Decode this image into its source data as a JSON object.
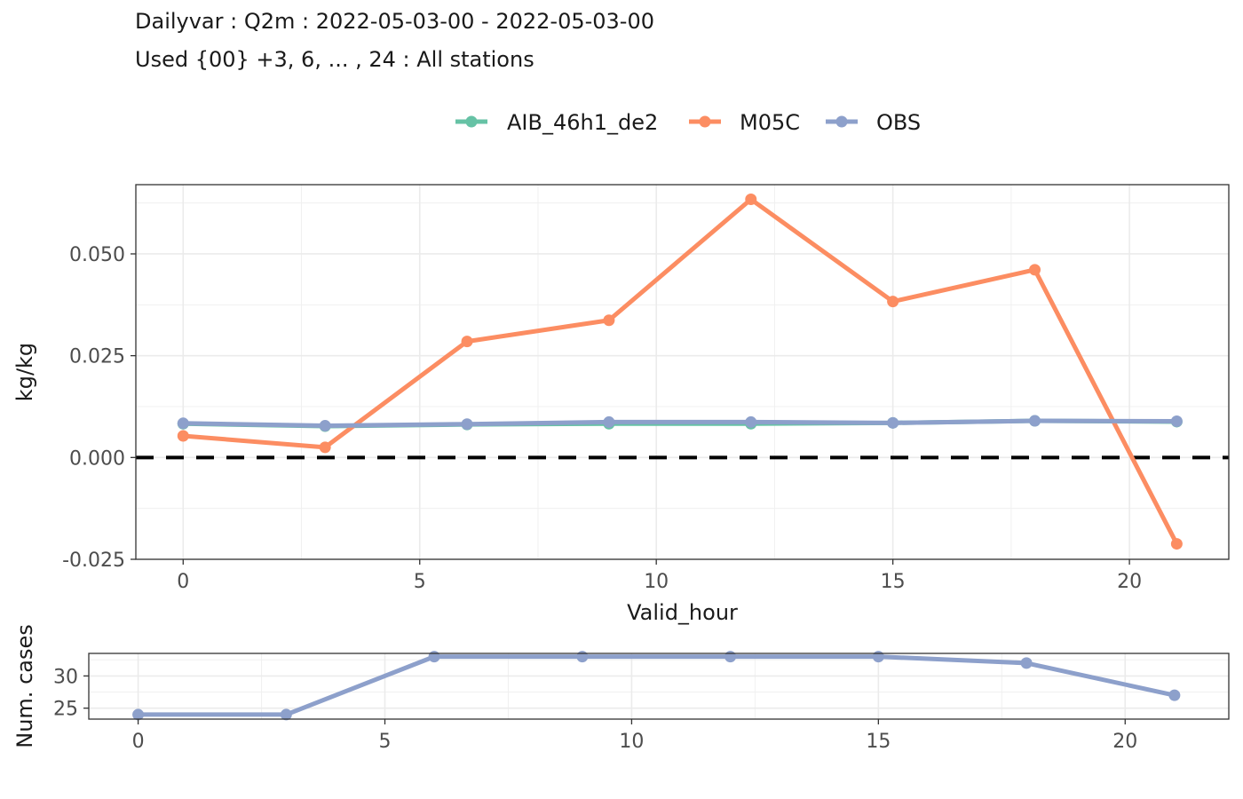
{
  "title": "Dailyvar : Q2m : 2022-05-03-00 - 2022-05-03-00",
  "subtitle": "Used {00} +3, 6, ... , 24 : All stations",
  "chart_data": [
    {
      "type": "line",
      "xlabel": "Valid_hour",
      "ylabel": "kg/kg",
      "xlim": [
        -1,
        22.1
      ],
      "ylim": [
        -0.025,
        0.067
      ],
      "xticks": [
        0,
        5,
        10,
        15,
        20
      ],
      "yticks": [
        -0.025,
        0.0,
        0.025,
        0.05
      ],
      "ytick_labels": [
        "-0.025",
        "0.000",
        "0.025",
        "0.050"
      ],
      "grid": true,
      "legend_position": "top",
      "reference_line": {
        "y": 0,
        "style": "dashed",
        "color": "#000000"
      },
      "x": [
        0,
        3,
        6,
        9,
        12,
        15,
        18,
        21
      ],
      "series": [
        {
          "name": "AIB_46h1_de2",
          "color": "#66C2A5",
          "values": [
            0.0083,
            0.0077,
            0.0081,
            0.0083,
            0.0083,
            0.0085,
            0.009,
            0.0088
          ]
        },
        {
          "name": "M05C",
          "color": "#FC8D62",
          "values": [
            0.0053,
            0.0025,
            0.0285,
            0.0337,
            0.0634,
            0.0383,
            0.0461,
            -0.0212
          ]
        },
        {
          "name": "OBS",
          "color": "#8DA0CB",
          "values": [
            0.0084,
            0.0078,
            0.0082,
            0.0087,
            0.0087,
            0.0085,
            0.009,
            0.0089
          ]
        }
      ]
    },
    {
      "type": "line",
      "xlabel": "",
      "ylabel": "Num. cases",
      "xlim": [
        -1,
        22.1
      ],
      "ylim": [
        23.3,
        33.5
      ],
      "xticks": [
        0,
        5,
        10,
        15,
        20
      ],
      "yticks": [
        25,
        30
      ],
      "grid": true,
      "x": [
        0,
        3,
        6,
        9,
        12,
        15,
        18,
        21
      ],
      "series": [
        {
          "color": "#8DA0CB",
          "values": [
            24,
            24,
            33,
            33,
            33,
            33,
            32,
            27
          ]
        }
      ]
    }
  ]
}
